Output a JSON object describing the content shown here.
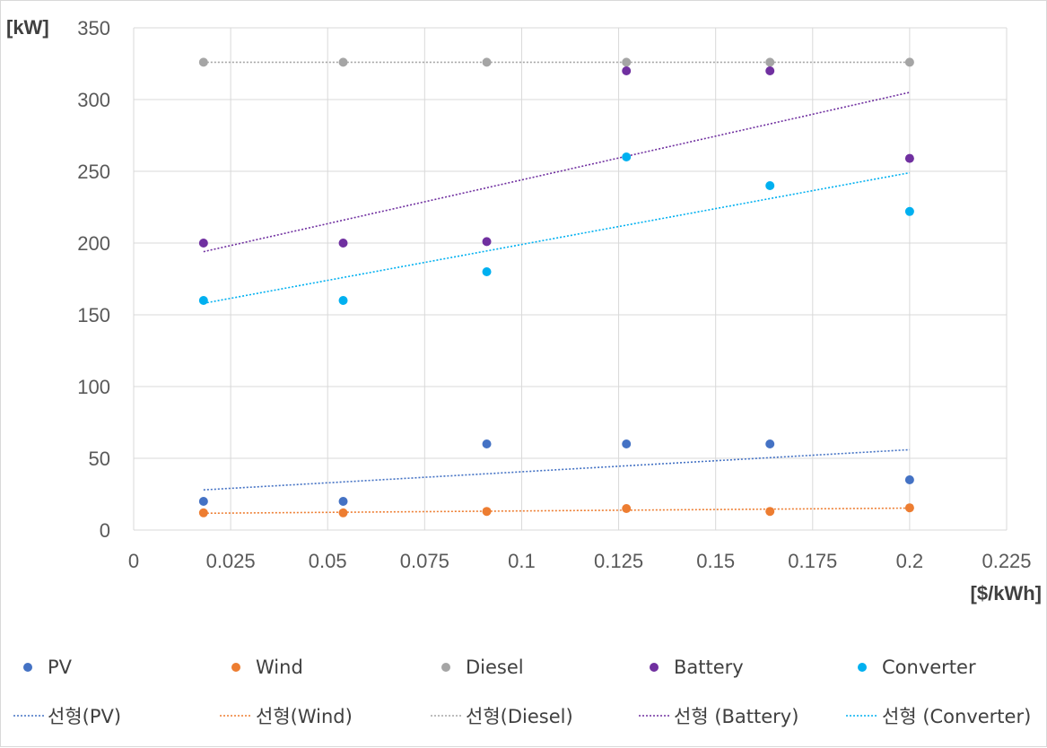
{
  "chart_data": {
    "type": "scatter",
    "xlabel": "[$/kWh]",
    "ylabel": "[kW]",
    "xlim": [
      0,
      0.225
    ],
    "ylim": [
      0,
      350
    ],
    "x_ticks": [
      "0",
      "0.025",
      "0.05",
      "0.075",
      "0.1",
      "0.125",
      "0.15",
      "0.175",
      "0.2",
      "0.225"
    ],
    "y_ticks": [
      "0",
      "50",
      "100",
      "150",
      "200",
      "250",
      "300",
      "350"
    ],
    "grid": true,
    "legend_position": "bottom",
    "series": [
      {
        "name": "PV",
        "color": "#4472c4",
        "x": [
          0.018,
          0.054,
          0.091,
          0.127,
          0.164,
          0.2
        ],
        "y": [
          20,
          20,
          60,
          60,
          60,
          35
        ],
        "trendline": {
          "name": "선형(PV)",
          "from": [
            0.018,
            28
          ],
          "to": [
            0.2,
            56
          ]
        }
      },
      {
        "name": "Wind",
        "color": "#ed7d31",
        "x": [
          0.018,
          0.054,
          0.091,
          0.127,
          0.164,
          0.2
        ],
        "y": [
          12,
          12,
          13,
          15,
          13,
          15.5
        ],
        "trendline": {
          "name": "선형(Wind)",
          "from": [
            0.018,
            11.7
          ],
          "to": [
            0.2,
            15.3
          ]
        }
      },
      {
        "name": "Diesel",
        "color": "#a5a5a5",
        "x": [
          0.018,
          0.054,
          0.091,
          0.127,
          0.164,
          0.2
        ],
        "y": [
          326,
          326,
          326,
          326,
          326,
          326
        ],
        "trendline": {
          "name": "선형(Diesel)",
          "from": [
            0.018,
            326
          ],
          "to": [
            0.2,
            326
          ]
        }
      },
      {
        "name": "Battery",
        "color": "#7030a0",
        "x": [
          0.018,
          0.054,
          0.091,
          0.127,
          0.164,
          0.2
        ],
        "y": [
          200,
          200,
          201,
          320,
          320,
          259
        ],
        "trendline": {
          "name": "선형 (Battery)",
          "from": [
            0.018,
            194
          ],
          "to": [
            0.2,
            305
          ]
        }
      },
      {
        "name": "Converter",
        "color": "#00b0f0",
        "x": [
          0.018,
          0.054,
          0.091,
          0.127,
          0.164,
          0.2
        ],
        "y": [
          160,
          160,
          180,
          260,
          240,
          222
        ],
        "trendline": {
          "name": "선형 (Converter)",
          "from": [
            0.018,
            158
          ],
          "to": [
            0.2,
            249
          ]
        }
      }
    ]
  }
}
